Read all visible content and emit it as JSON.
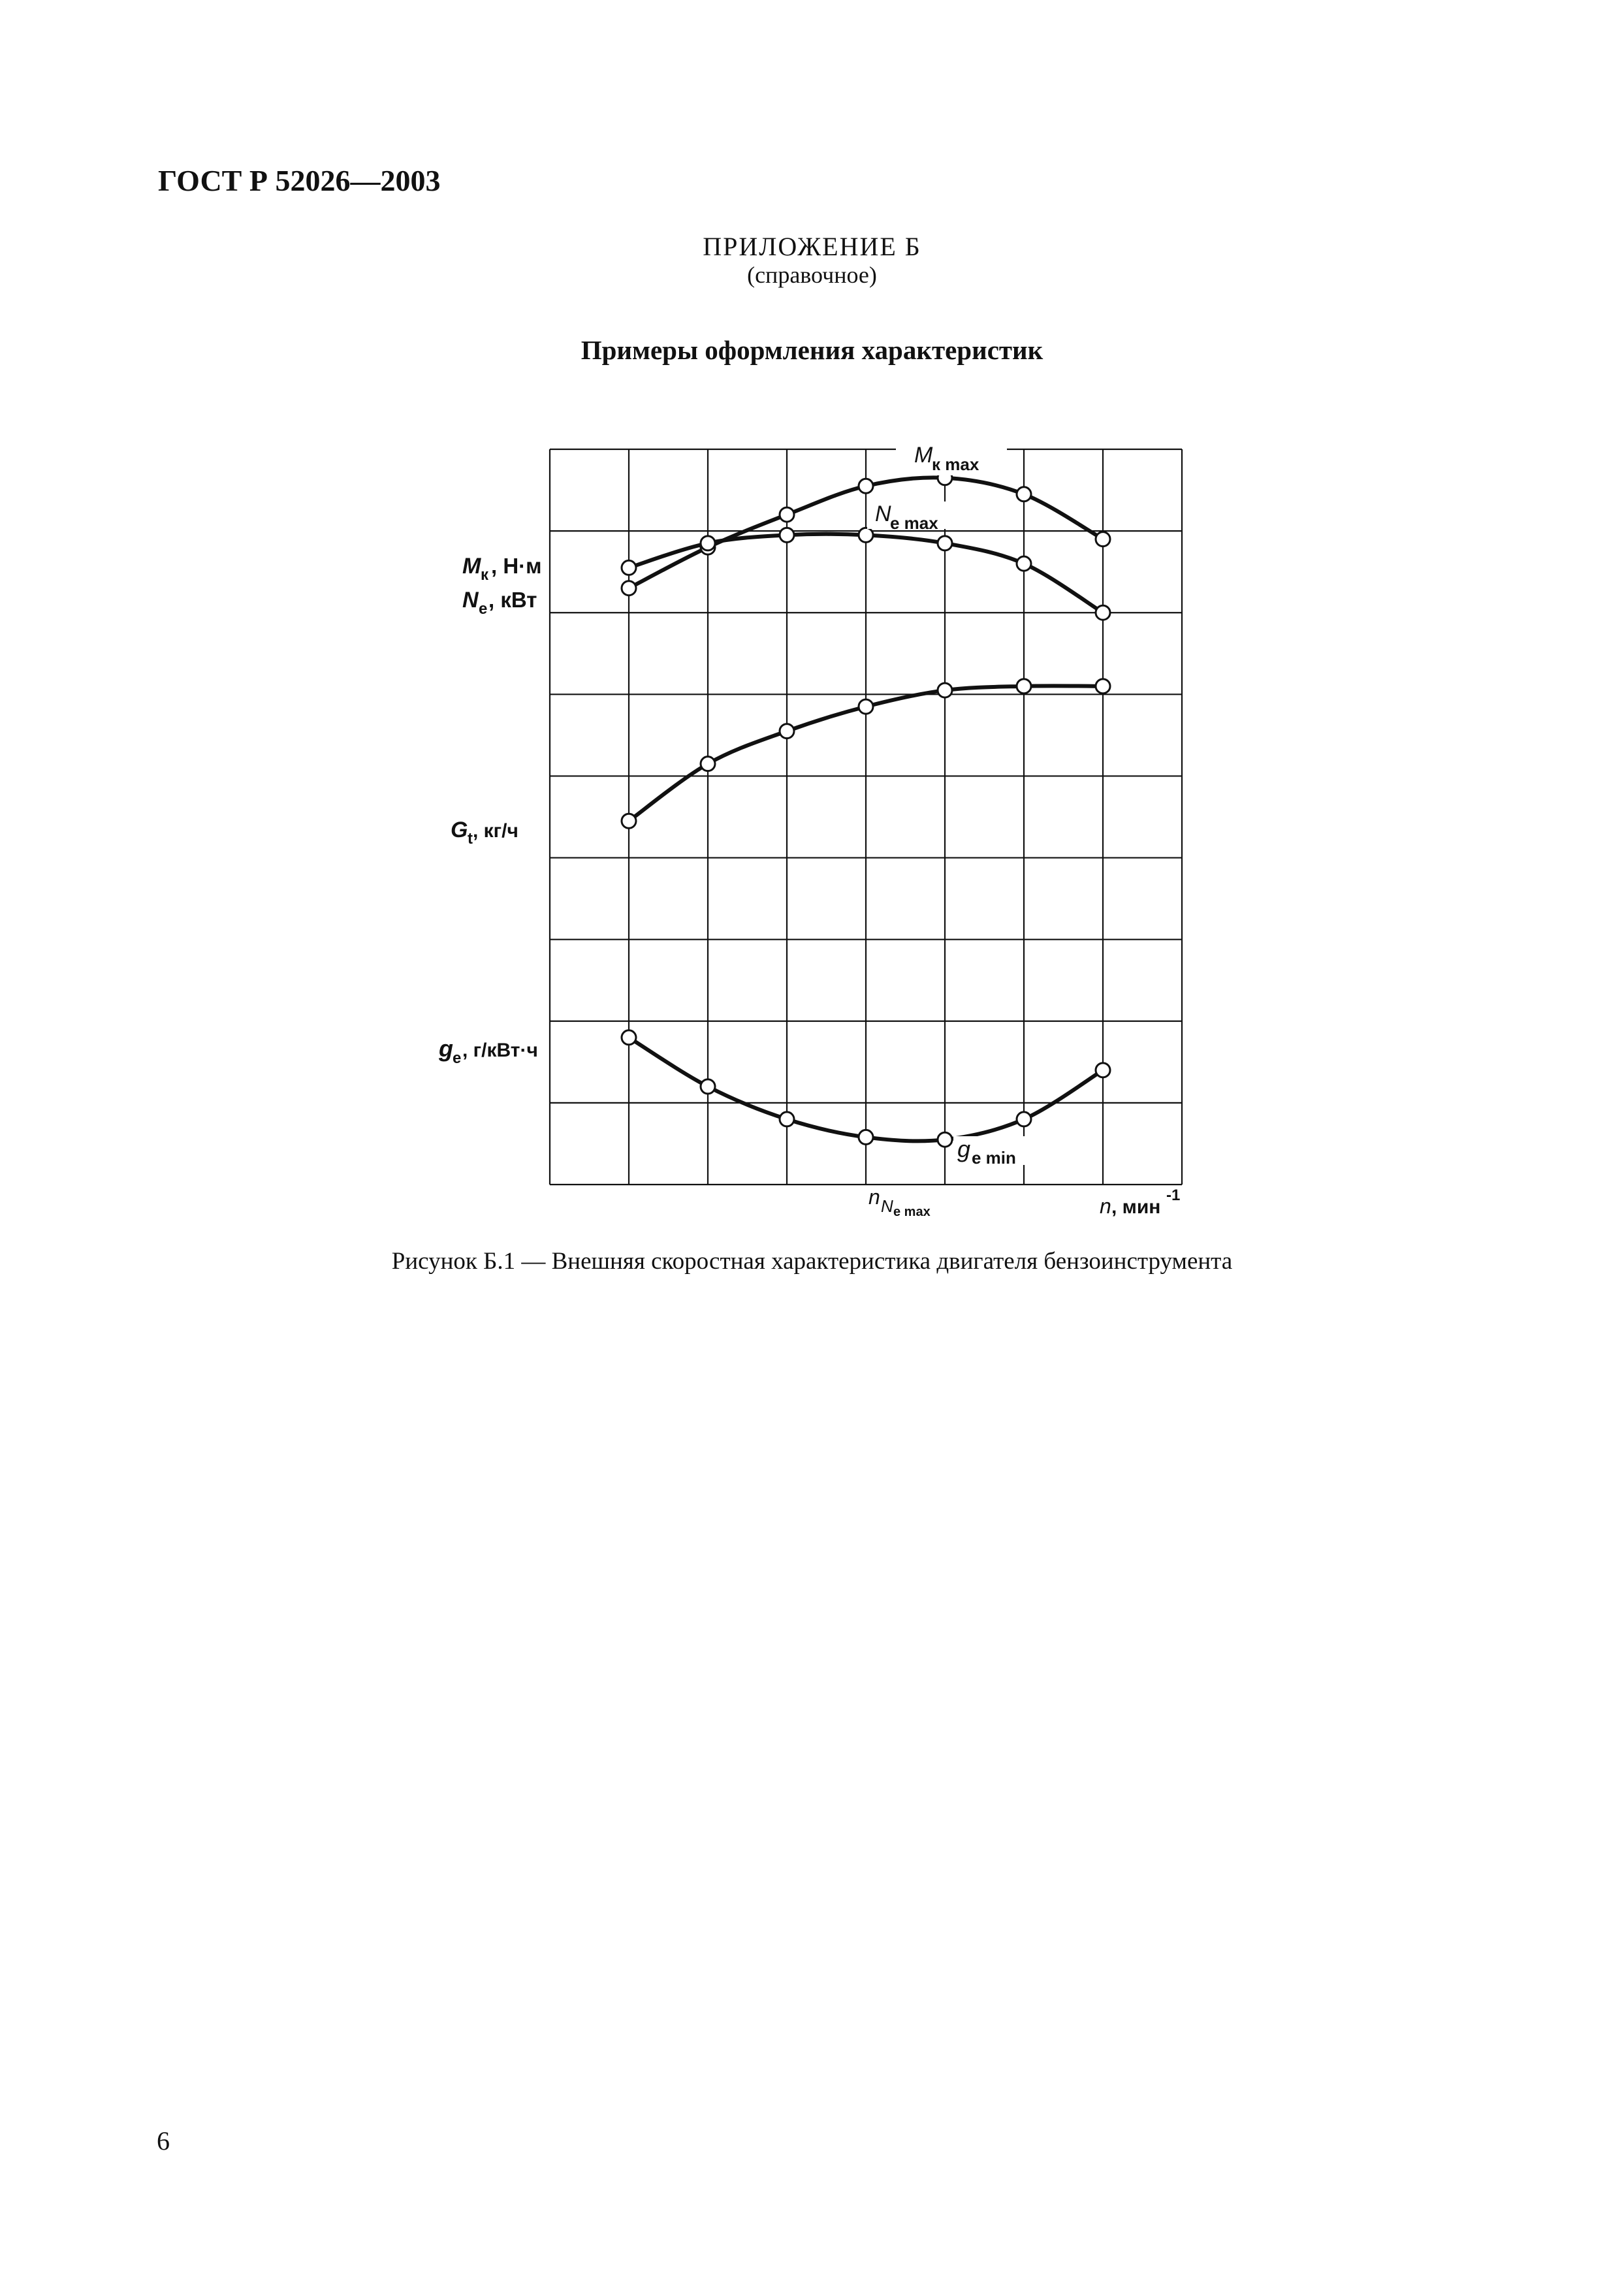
{
  "document": {
    "code": "ГОСТ Р 52026—2003",
    "annex": "ПРИЛОЖЕНИЕ Б",
    "annex_type": "(справочное)",
    "section_title": "Примеры оформления характеристик",
    "caption": "Рисунок Б.1 — Внешняя скоростная характеристика двигателя бензоинструмента",
    "page_number": "6"
  },
  "chart_data": {
    "type": "line",
    "title": "",
    "grid": true,
    "x_range": [
      0,
      8
    ],
    "y_range": [
      0,
      9
    ],
    "x_note": "Values are read in grid cells; the figure prints no numeric scale.",
    "x": [
      1,
      2,
      3,
      4,
      5,
      6,
      7
    ],
    "y_labels": [
      {
        "symbol": "M",
        "sub": "к",
        "unit": ", Н·м"
      },
      {
        "symbol": "N",
        "sub": "e",
        "unit": ", кВт"
      },
      {
        "symbol": "G",
        "sub": "t",
        "unit": ", кг/ч"
      },
      {
        "symbol": "g",
        "sub": "e",
        "unit": ", г/кВт·ч"
      }
    ],
    "x_labels": [
      {
        "symbol": "n",
        "sub": "N",
        "subsub": "e max"
      },
      {
        "symbol": "n",
        "unit": ", мин",
        "sup": "-1"
      }
    ],
    "series": [
      {
        "key": "Mk",
        "values": [
          7.3,
          7.8,
          8.2,
          8.55,
          8.65,
          8.45,
          7.9
        ],
        "annotation": {
          "symbol": "M",
          "sub": "к max"
        }
      },
      {
        "key": "Ne",
        "values": [
          7.55,
          7.85,
          7.95,
          7.95,
          7.85,
          7.6,
          7.0
        ],
        "annotation": {
          "symbol": "N",
          "sub": "e max"
        }
      },
      {
        "key": "Gt",
        "values": [
          4.45,
          5.15,
          5.55,
          5.85,
          6.05,
          6.1,
          6.1
        ]
      },
      {
        "key": "ge",
        "values": [
          1.8,
          1.2,
          0.8,
          0.58,
          0.55,
          0.8,
          1.4
        ],
        "annotation": {
          "symbol": "g",
          "sub": "e min"
        }
      }
    ]
  }
}
